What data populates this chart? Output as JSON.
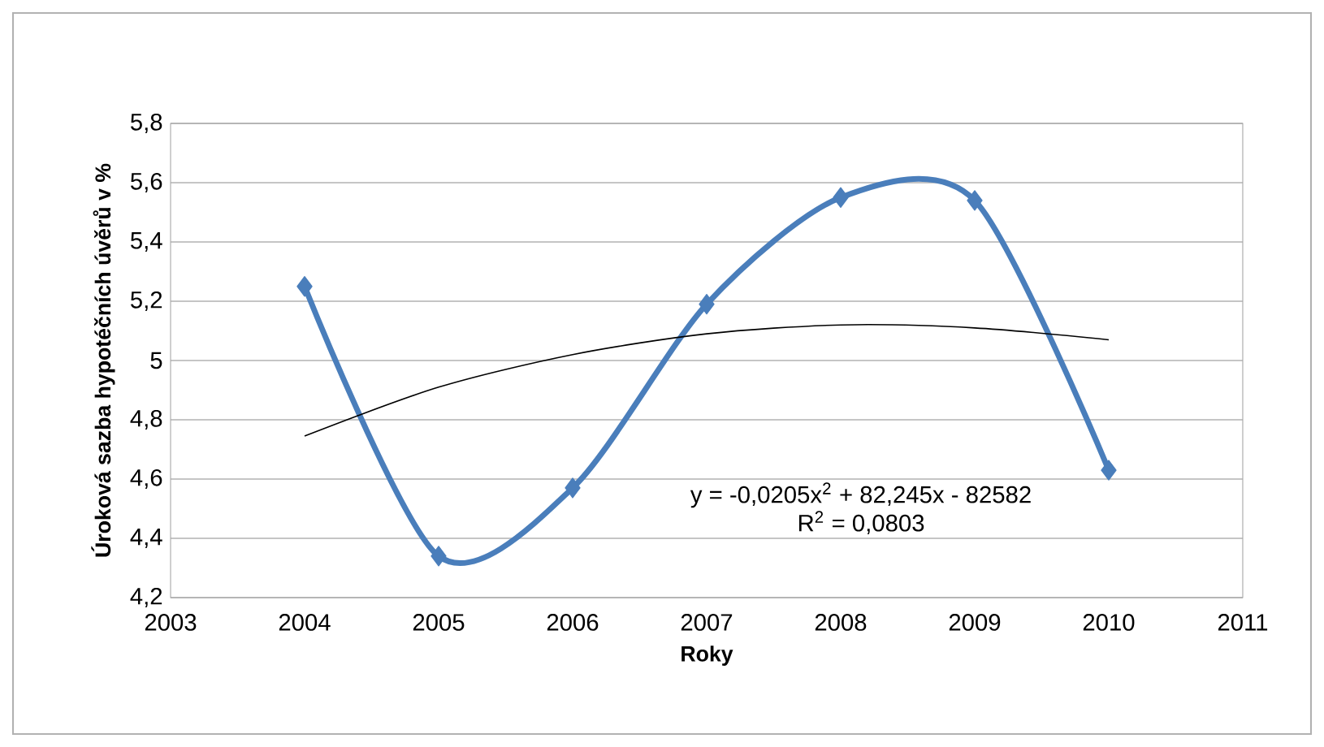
{
  "chart_data": {
    "type": "line",
    "xlabel": "Roky",
    "ylabel": "Úroková sazba hypotéčních úvěrů v %",
    "x": [
      2004,
      2005,
      2006,
      2007,
      2008,
      2009,
      2010
    ],
    "series": [
      {
        "color": "#4a7ebb",
        "values": [
          5.25,
          4.34,
          4.57,
          5.19,
          5.55,
          5.54,
          4.63
        ]
      },
      {
        "type": "line",
        "color": "#000000",
        "marker": "none",
        "x": [
          2004,
          2005,
          2006,
          2007,
          2008,
          2009,
          2010
        ],
        "values": [
          4.745,
          4.91,
          5.02,
          5.09,
          5.12,
          5.11,
          5.07
        ]
      }
    ],
    "annotations": [
      "y = -0,0205x$^{2}$ + 82,245x - 82582",
      "R$^{2}$ = 0,0803"
    ],
    "xlim": [
      2003,
      2011
    ],
    "xticks": [
      2003,
      2004,
      2005,
      2006,
      2007,
      2008,
      2009,
      2010,
      2011
    ],
    "ylim": [
      4.2,
      5.8
    ],
    "yticks": [
      {
        "value": 4.2,
        "label": "4,2"
      },
      {
        "value": 4.4,
        "label": "4,4"
      },
      {
        "value": 4.6,
        "label": "4,6"
      },
      {
        "value": 4.8,
        "label": "4,8"
      },
      5,
      {
        "value": 5.2,
        "label": "5,2"
      },
      {
        "value": 5.4,
        "label": "5,4"
      },
      {
        "value": 5.6,
        "label": "5,6"
      },
      {
        "value": 5.8,
        "label": "5,8"
      }
    ],
    "grid": "y",
    "marker": "diamond",
    "line_style": "solid"
  }
}
